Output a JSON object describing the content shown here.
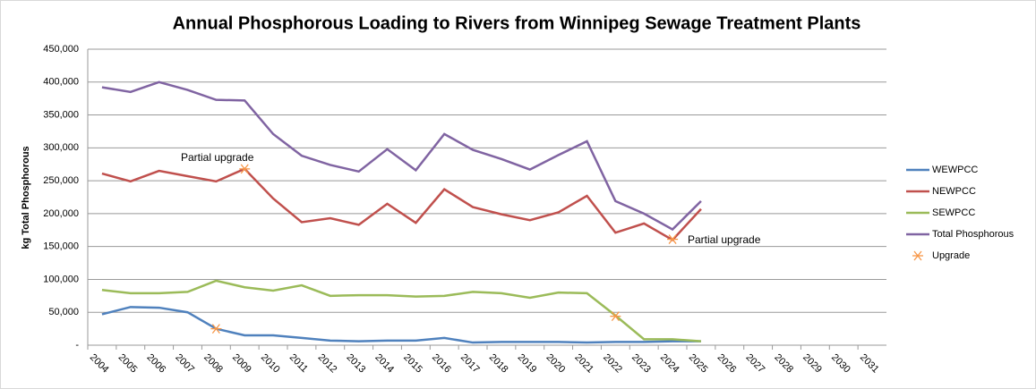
{
  "chart_data": {
    "type": "line",
    "title": "Annual Phosphorous Loading to Rivers from Winnipeg Sewage Treatment Plants",
    "ylabel": "kg Total Phosphorous",
    "categories": [
      "2004",
      "2005",
      "2006",
      "2007",
      "2008",
      "2009",
      "2010",
      "2011",
      "2012",
      "2013",
      "2014",
      "2015",
      "2016",
      "2017",
      "2018",
      "2019",
      "2020",
      "2021",
      "2022",
      "2023",
      "2024",
      "2025",
      "2026",
      "2027",
      "2028",
      "2029",
      "2030",
      "2031"
    ],
    "series": [
      {
        "name": "WEWPCC",
        "color": "#4f81bd",
        "values": [
          47000,
          58000,
          57000,
          50000,
          25000,
          15000,
          15000,
          11000,
          7000,
          6000,
          7000,
          7000,
          11000,
          4000,
          5000,
          5000,
          5000,
          4000,
          5000,
          5000,
          6000,
          6000,
          null,
          null,
          null,
          null,
          null,
          null
        ]
      },
      {
        "name": "NEWPCC",
        "color": "#c0504d",
        "values": [
          261000,
          249000,
          265000,
          257000,
          249000,
          268000,
          223000,
          187000,
          193000,
          183000,
          215000,
          186000,
          237000,
          210000,
          199000,
          190000,
          202000,
          227000,
          171000,
          185000,
          160000,
          207000,
          null,
          null,
          null,
          null,
          null,
          null
        ]
      },
      {
        "name": "SEWPCC",
        "color": "#9bbb59",
        "values": [
          84000,
          79000,
          79000,
          81000,
          98000,
          88000,
          83000,
          91000,
          75000,
          76000,
          76000,
          74000,
          75000,
          81000,
          79000,
          72000,
          80000,
          79000,
          45000,
          9000,
          9000,
          6000,
          null,
          null,
          null,
          null,
          null,
          null
        ]
      },
      {
        "name": "Total Phosphorous",
        "color": "#8064a2",
        "values": [
          392000,
          385000,
          400000,
          388000,
          373000,
          372000,
          321000,
          288000,
          274000,
          264000,
          298000,
          266000,
          321000,
          297000,
          283000,
          267000,
          289000,
          310000,
          219000,
          200000,
          176000,
          219000,
          null,
          null,
          null,
          null,
          null,
          null
        ]
      },
      {
        "name": "Upgrade",
        "type": "scatter",
        "color": "#f79646",
        "values": [
          null,
          null,
          null,
          null,
          25000,
          268000,
          null,
          null,
          null,
          null,
          null,
          null,
          null,
          null,
          null,
          null,
          null,
          null,
          44000,
          null,
          161000,
          null,
          null,
          null,
          null,
          null,
          null,
          null
        ]
      }
    ],
    "annotations": [
      "Partial upgrade",
      "Partial upgrade"
    ],
    "ylim": [
      0,
      450000
    ],
    "yticks": [
      {
        "value": 0,
        "label": "-"
      },
      {
        "value": 50000,
        "label": "50,000"
      },
      {
        "value": 100000,
        "label": "100,000"
      },
      {
        "value": 150000,
        "label": "150,000"
      },
      {
        "value": 200000,
        "label": "200,000"
      },
      {
        "value": 250000,
        "label": "250,000"
      },
      {
        "value": 300000,
        "label": "300,000"
      },
      {
        "value": 350000,
        "label": "350,000"
      },
      {
        "value": 400000,
        "label": "400,000"
      },
      {
        "value": 450000,
        "label": "450,000"
      }
    ],
    "grid": true,
    "legend": "right"
  }
}
